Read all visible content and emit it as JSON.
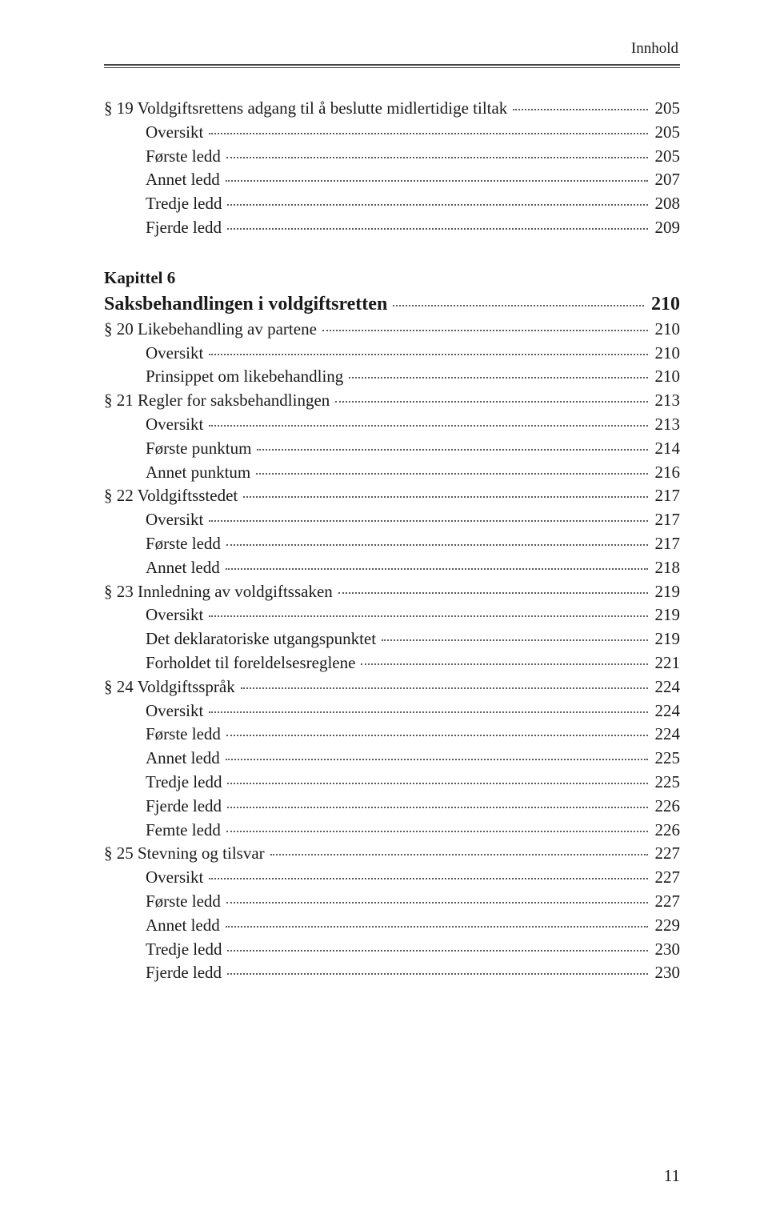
{
  "running_head": "Innhold",
  "chapter": {
    "label": "Kapittel 6",
    "title": "Saksbehandlingen i voldgiftsretten",
    "title_page": "210"
  },
  "entries_pre": [
    {
      "indent": 0,
      "label": "§ 19 Voldgiftsrettens adgang til å beslutte midlertidige tiltak",
      "page": "205"
    },
    {
      "indent": 1,
      "label": "Oversikt",
      "page": "205"
    },
    {
      "indent": 1,
      "label": "Første ledd",
      "page": "205"
    },
    {
      "indent": 1,
      "label": "Annet ledd",
      "page": "207"
    },
    {
      "indent": 1,
      "label": "Tredje ledd",
      "page": "208"
    },
    {
      "indent": 1,
      "label": "Fjerde ledd",
      "page": "209"
    }
  ],
  "entries_post": [
    {
      "indent": 0,
      "label": "§ 20 Likebehandling av partene",
      "page": "210"
    },
    {
      "indent": 1,
      "label": "Oversikt",
      "page": "210"
    },
    {
      "indent": 1,
      "label": "Prinsippet om likebehandling",
      "page": "210"
    },
    {
      "indent": 0,
      "label": "§ 21 Regler for saksbehandlingen",
      "page": "213"
    },
    {
      "indent": 1,
      "label": "Oversikt",
      "page": "213"
    },
    {
      "indent": 1,
      "label": "Første punktum",
      "page": "214"
    },
    {
      "indent": 1,
      "label": "Annet punktum",
      "page": "216"
    },
    {
      "indent": 0,
      "label": "§ 22 Voldgiftsstedet",
      "page": "217"
    },
    {
      "indent": 1,
      "label": "Oversikt",
      "page": "217"
    },
    {
      "indent": 1,
      "label": "Første ledd",
      "page": "217"
    },
    {
      "indent": 1,
      "label": "Annet ledd",
      "page": "218"
    },
    {
      "indent": 0,
      "label": "§ 23 Innledning av voldgiftssaken",
      "page": "219"
    },
    {
      "indent": 1,
      "label": "Oversikt",
      "page": "219"
    },
    {
      "indent": 1,
      "label": "Det deklaratoriske utgangspunktet",
      "page": "219"
    },
    {
      "indent": 1,
      "label": "Forholdet til foreldelsesreglene",
      "page": "221"
    },
    {
      "indent": 0,
      "label": "§ 24 Voldgiftsspråk",
      "page": "224"
    },
    {
      "indent": 1,
      "label": "Oversikt",
      "page": "224"
    },
    {
      "indent": 1,
      "label": "Første ledd",
      "page": "224"
    },
    {
      "indent": 1,
      "label": "Annet ledd",
      "page": "225"
    },
    {
      "indent": 1,
      "label": "Tredje ledd",
      "page": "225"
    },
    {
      "indent": 1,
      "label": "Fjerde ledd",
      "page": "226"
    },
    {
      "indent": 1,
      "label": "Femte ledd",
      "page": "226"
    },
    {
      "indent": 0,
      "label": "§ 25 Stevning og tilsvar",
      "page": "227"
    },
    {
      "indent": 1,
      "label": "Oversikt",
      "page": "227"
    },
    {
      "indent": 1,
      "label": "Første ledd",
      "page": "227"
    },
    {
      "indent": 1,
      "label": "Annet ledd",
      "page": "229"
    },
    {
      "indent": 1,
      "label": "Tredje ledd",
      "page": "230"
    },
    {
      "indent": 1,
      "label": "Fjerde ledd",
      "page": "230"
    }
  ],
  "page_number": "11"
}
